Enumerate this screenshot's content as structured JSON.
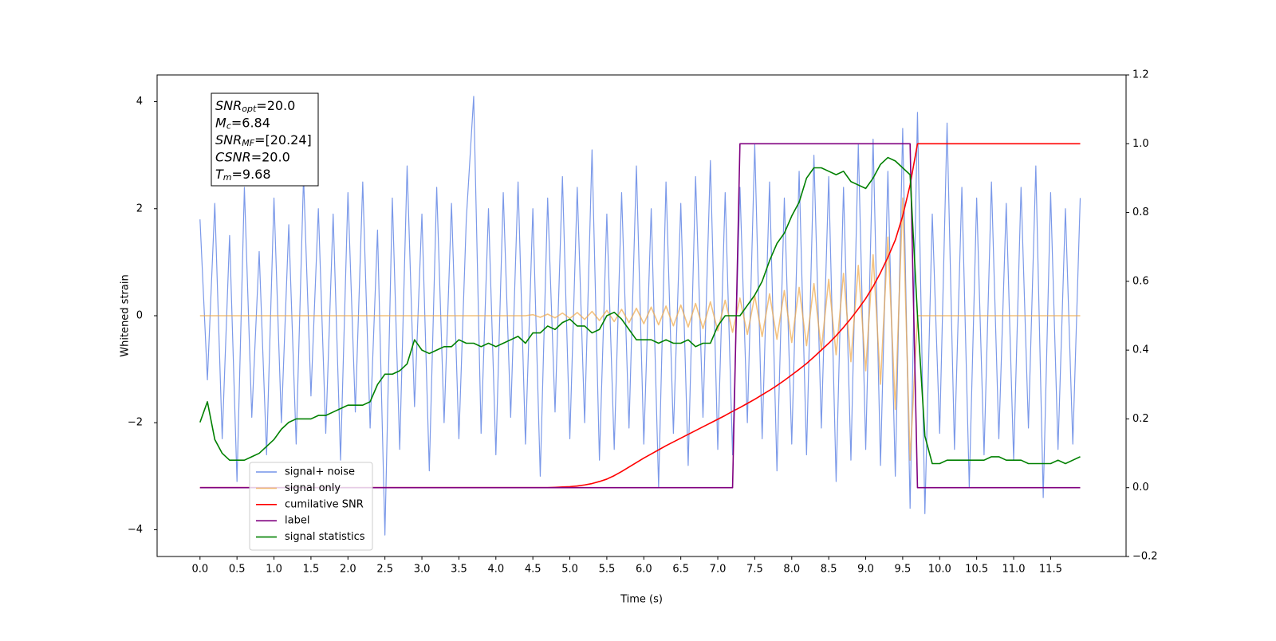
{
  "chart_data": {
    "type": "line",
    "xlabel": "Time (s)",
    "ylabel": "Whitened strain",
    "xlim": [
      -0.58,
      12.52
    ],
    "ylim": [
      -4.5,
      4.5
    ],
    "y2lim": [
      -0.2,
      1.2
    ],
    "xticks": [
      {
        "value": 0,
        "label": "0.0"
      },
      {
        "value": 0.5,
        "label": "0.5"
      },
      {
        "value": 1,
        "label": "1.0"
      },
      {
        "value": 1.5,
        "label": "1.5"
      },
      {
        "value": 2,
        "label": "2.0"
      },
      {
        "value": 2.5,
        "label": "2.5"
      },
      {
        "value": 3,
        "label": "3.0"
      },
      {
        "value": 3.5,
        "label": "3.5"
      },
      {
        "value": 4,
        "label": "4.0"
      },
      {
        "value": 4.5,
        "label": "4.5"
      },
      {
        "value": 5,
        "label": "5.0"
      },
      {
        "value": 5.5,
        "label": "5.5"
      },
      {
        "value": 6,
        "label": "6.0"
      },
      {
        "value": 6.5,
        "label": "6.5"
      },
      {
        "value": 7,
        "label": "7.0"
      },
      {
        "value": 7.5,
        "label": "7.5"
      },
      {
        "value": 8,
        "label": "8.0"
      },
      {
        "value": 8.5,
        "label": "8.5"
      },
      {
        "value": 9,
        "label": "9.0"
      },
      {
        "value": 9.5,
        "label": "9.5"
      },
      {
        "value": 10,
        "label": "10.0"
      },
      {
        "value": 10.5,
        "label": "10.5"
      },
      {
        "value": 11,
        "label": "11.0"
      },
      {
        "value": 11.5,
        "label": "11.5"
      }
    ],
    "yticks": [
      {
        "value": -4,
        "label": "−4"
      },
      {
        "value": -2,
        "label": "−2"
      },
      0,
      2,
      4
    ],
    "y2ticks": [
      {
        "value": -0.2,
        "label": "−0.2"
      },
      {
        "value": 0,
        "label": "0.0"
      },
      0.2,
      0.4,
      0.6,
      0.8,
      {
        "value": 1,
        "label": "1.0"
      },
      1.2
    ],
    "legend": "lower left",
    "annotation": [
      {
        "symbol": "SNR",
        "sub": "opt",
        "text": "=20.0"
      },
      {
        "symbol": "M",
        "sub": "c",
        "text": "=6.84"
      },
      {
        "symbol": "SNR",
        "sub": "MF",
        "text": "=[20.24]"
      },
      {
        "symbol": "CSNR",
        "sub": null,
        "text": "=20.0"
      },
      {
        "symbol": "T",
        "sub": "m",
        "text": "=9.68"
      }
    ],
    "x": [
      0,
      0.1,
      0.2,
      0.3,
      0.4,
      0.5,
      0.6,
      0.7,
      0.8,
      0.9,
      1,
      1.1,
      1.2,
      1.3,
      1.4,
      1.5,
      1.6,
      1.7,
      1.8,
      1.9,
      2,
      2.1,
      2.2,
      2.3,
      2.4,
      2.5,
      2.6,
      2.7,
      2.8,
      2.9,
      3,
      3.1,
      3.2,
      3.3,
      3.4,
      3.5,
      3.6,
      3.7,
      3.8,
      3.9,
      4,
      4.1,
      4.2,
      4.3,
      4.4,
      4.5,
      4.6,
      4.7,
      4.8,
      4.9,
      5,
      5.1,
      5.2,
      5.3,
      5.4,
      5.5,
      5.6,
      5.7,
      5.8,
      5.9,
      6,
      6.1,
      6.2,
      6.3,
      6.4,
      6.5,
      6.6,
      6.7,
      6.8,
      6.9,
      7,
      7.1,
      7.2,
      7.3,
      7.4,
      7.5,
      7.6,
      7.7,
      7.8,
      7.9,
      8,
      8.1,
      8.2,
      8.3,
      8.4,
      8.5,
      8.6,
      8.7,
      8.8,
      8.9,
      9,
      9.1,
      9.2,
      9.3,
      9.4,
      9.5,
      9.6,
      9.7,
      9.8,
      9.9,
      10,
      10.1,
      10.2,
      10.3,
      10.4,
      10.5,
      10.6,
      10.7,
      10.8,
      10.9,
      11,
      11.1,
      11.2,
      11.3,
      11.4,
      11.5,
      11.6,
      11.7,
      11.8,
      11.9
    ],
    "series": [
      {
        "name": "signal+ noise",
        "color": "#7493e8",
        "axis": "y",
        "values": [
          1.8,
          -1.2,
          2.1,
          -2.3,
          1.5,
          -3.1,
          2.4,
          -1.9,
          1.2,
          -2.6,
          2.2,
          -2.0,
          1.7,
          -2.4,
          2.6,
          -1.5,
          2.0,
          -2.2,
          1.9,
          -2.7,
          2.3,
          -1.8,
          2.5,
          -2.1,
          1.6,
          -4.1,
          2.2,
          -2.5,
          2.8,
          -1.7,
          1.9,
          -2.9,
          2.4,
          -2.0,
          2.1,
          -2.3,
          1.8,
          4.1,
          -2.2,
          2.0,
          -2.6,
          2.3,
          -1.9,
          2.5,
          -2.4,
          2.0,
          -3.0,
          2.2,
          -1.8,
          2.6,
          -2.3,
          2.4,
          -2.0,
          3.1,
          -2.7,
          1.9,
          -2.5,
          2.3,
          -2.1,
          2.8,
          -2.4,
          2.0,
          -3.2,
          2.5,
          -2.2,
          2.1,
          -2.8,
          2.6,
          -1.9,
          2.9,
          -2.5,
          2.3,
          -2.6,
          2.4,
          -2.0,
          3.2,
          -2.3,
          2.5,
          -2.9,
          2.2,
          -2.4,
          2.7,
          -2.6,
          3.0,
          -2.1,
          2.6,
          -3.1,
          2.4,
          -2.7,
          3.2,
          -2.5,
          3.3,
          -2.8,
          2.7,
          -3.0,
          3.5,
          -3.6,
          3.8,
          -3.7,
          1.9,
          -2.2,
          3.6,
          -2.5,
          2.4,
          -3.2,
          2.2,
          -2.6,
          2.5,
          -2.3,
          2.1,
          -2.7,
          2.4,
          -2.1,
          2.8,
          -3.4,
          2.3,
          -2.5,
          2.0,
          -2.4,
          2.2
        ]
      },
      {
        "name": "signal only",
        "color": "#f0a848",
        "axis": "y",
        "values": [
          0,
          0,
          0,
          0,
          0,
          0,
          0,
          0,
          0,
          0,
          0,
          0,
          0,
          0,
          0,
          0,
          0,
          0,
          0,
          0,
          0,
          0,
          0,
          0,
          0,
          0,
          0,
          0,
          0,
          0,
          0,
          0,
          0,
          0,
          0,
          0,
          0,
          0,
          0,
          0,
          0,
          0,
          0,
          0,
          0,
          0.02,
          -0.03,
          0.03,
          -0.04,
          0.05,
          -0.05,
          0.06,
          -0.07,
          0.08,
          -0.09,
          0.1,
          -0.11,
          0.12,
          -0.13,
          0.14,
          -0.15,
          0.16,
          -0.17,
          0.18,
          -0.19,
          0.2,
          -0.21,
          0.23,
          -0.24,
          0.26,
          -0.28,
          0.29,
          -0.31,
          0.33,
          -0.35,
          0.37,
          -0.39,
          0.41,
          -0.44,
          0.47,
          -0.5,
          0.53,
          -0.56,
          0.6,
          -0.64,
          0.68,
          -0.73,
          0.79,
          -0.86,
          0.94,
          -1.03,
          1.14,
          -1.28,
          1.47,
          -1.75,
          2.2,
          -2.7,
          0,
          0,
          0,
          0,
          0,
          0,
          0,
          0,
          0,
          0,
          0,
          0,
          0,
          0,
          0,
          0,
          0,
          0,
          0,
          0,
          0,
          0,
          0
        ]
      },
      {
        "name": "cumilative SNR",
        "color": "#ff0000",
        "axis": "y2",
        "values": [
          0,
          0,
          0,
          0,
          0,
          0,
          0,
          0,
          0,
          0,
          0,
          0,
          0,
          0,
          0,
          0,
          0,
          0,
          0,
          0,
          0,
          0,
          0,
          0,
          0,
          0,
          0,
          0,
          0,
          0,
          0,
          0,
          0,
          0,
          0,
          0,
          0,
          0,
          0,
          0,
          0,
          0,
          0,
          0,
          0,
          0,
          0,
          0,
          0.001,
          0.002,
          0.003,
          0.005,
          0.008,
          0.012,
          0.018,
          0.025,
          0.035,
          0.047,
          0.06,
          0.073,
          0.086,
          0.098,
          0.11,
          0.122,
          0.133,
          0.144,
          0.155,
          0.166,
          0.177,
          0.188,
          0.199,
          0.21,
          0.222,
          0.233,
          0.245,
          0.257,
          0.27,
          0.283,
          0.297,
          0.312,
          0.328,
          0.344,
          0.361,
          0.38,
          0.4,
          0.42,
          0.442,
          0.466,
          0.492,
          0.52,
          0.55,
          0.585,
          0.625,
          0.67,
          0.72,
          0.79,
          0.88,
          1,
          1,
          1,
          1,
          1,
          1,
          1,
          1,
          1,
          1,
          1,
          1,
          1,
          1,
          1,
          1,
          1,
          1,
          1,
          1,
          1,
          1,
          1
        ]
      },
      {
        "name": "label",
        "color": "#800080",
        "axis": "y2",
        "values": [
          0,
          0,
          0,
          0,
          0,
          0,
          0,
          0,
          0,
          0,
          0,
          0,
          0,
          0,
          0,
          0,
          0,
          0,
          0,
          0,
          0,
          0,
          0,
          0,
          0,
          0,
          0,
          0,
          0,
          0,
          0,
          0,
          0,
          0,
          0,
          0,
          0,
          0,
          0,
          0,
          0,
          0,
          0,
          0,
          0,
          0,
          0,
          0,
          0,
          0,
          0,
          0,
          0,
          0,
          0,
          0,
          0,
          0,
          0,
          0,
          0,
          0,
          0,
          0,
          0,
          0,
          0,
          0,
          0,
          0,
          0,
          0,
          0,
          1,
          1,
          1,
          1,
          1,
          1,
          1,
          1,
          1,
          1,
          1,
          1,
          1,
          1,
          1,
          1,
          1,
          1,
          1,
          1,
          1,
          1,
          1,
          1,
          0,
          0,
          0,
          0,
          0,
          0,
          0,
          0,
          0,
          0,
          0,
          0,
          0,
          0,
          0,
          0,
          0,
          0,
          0,
          0,
          0,
          0,
          0
        ]
      },
      {
        "name": "signal statistics",
        "color": "#008000",
        "axis": "y2",
        "values": [
          0.19,
          0.25,
          0.14,
          0.1,
          0.08,
          0.08,
          0.08,
          0.09,
          0.1,
          0.12,
          0.14,
          0.17,
          0.19,
          0.2,
          0.2,
          0.2,
          0.21,
          0.21,
          0.22,
          0.23,
          0.24,
          0.24,
          0.24,
          0.25,
          0.3,
          0.33,
          0.33,
          0.34,
          0.36,
          0.43,
          0.4,
          0.39,
          0.4,
          0.41,
          0.41,
          0.43,
          0.42,
          0.42,
          0.41,
          0.42,
          0.41,
          0.42,
          0.43,
          0.44,
          0.42,
          0.45,
          0.45,
          0.47,
          0.46,
          0.48,
          0.49,
          0.47,
          0.47,
          0.45,
          0.46,
          0.5,
          0.51,
          0.49,
          0.46,
          0.43,
          0.43,
          0.43,
          0.42,
          0.43,
          0.42,
          0.42,
          0.43,
          0.41,
          0.42,
          0.42,
          0.47,
          0.5,
          0.5,
          0.5,
          0.53,
          0.56,
          0.6,
          0.66,
          0.71,
          0.74,
          0.79,
          0.83,
          0.9,
          0.93,
          0.93,
          0.92,
          0.91,
          0.92,
          0.89,
          0.88,
          0.87,
          0.9,
          0.94,
          0.96,
          0.95,
          0.93,
          0.91,
          0.5,
          0.15,
          0.07,
          0.07,
          0.08,
          0.08,
          0.08,
          0.08,
          0.08,
          0.08,
          0.09,
          0.09,
          0.08,
          0.08,
          0.08,
          0.07,
          0.07,
          0.07,
          0.07,
          0.08,
          0.07,
          0.08,
          0.09
        ]
      }
    ]
  }
}
